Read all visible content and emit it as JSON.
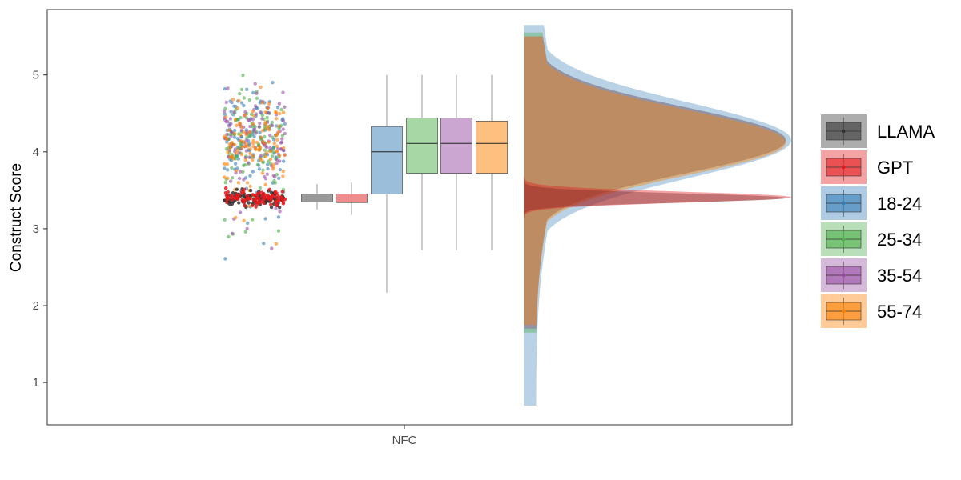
{
  "chart_data": {
    "type": "raincloud",
    "title": "",
    "xlabel": "",
    "ylabel": "Construct Score",
    "categories": [
      "NFC"
    ],
    "ylim": [
      0.45,
      5.85
    ],
    "yticks": [
      1,
      2,
      3,
      4,
      5
    ],
    "grid": false,
    "legend_position": "right",
    "series": [
      {
        "name": "LLAMA",
        "color": "#333333",
        "box": {
          "whisker_low": 3.25,
          "q1": 3.35,
          "median": 3.4,
          "q3": 3.45,
          "whisker_high": 3.58
        },
        "density": {
          "mode": 3.4,
          "sd": 0.06,
          "peak": 0.98,
          "min": 3.1,
          "max": 3.7
        }
      },
      {
        "name": "GPT",
        "color": "#e41a1c",
        "box": {
          "whisker_low": 3.18,
          "q1": 3.34,
          "median": 3.4,
          "q3": 3.45,
          "whisker_high": 3.6
        },
        "density": {
          "mode": 3.41,
          "sd": 0.07,
          "peak": 1.0,
          "min": 3.1,
          "max": 3.75
        }
      },
      {
        "name": "18-24",
        "color": "#377eb8",
        "box": {
          "whisker_low": 2.17,
          "q1": 3.45,
          "median": 4.0,
          "q3": 4.33,
          "whisker_high": 5.0
        },
        "density": {
          "mode": 4.15,
          "sd": 0.48,
          "peak": 1.0,
          "min": 0.7,
          "max": 5.65
        }
      },
      {
        "name": "25-34",
        "color": "#4daf4a",
        "box": {
          "whisker_low": 2.72,
          "q1": 3.72,
          "median": 4.11,
          "q3": 4.44,
          "whisker_high": 5.0
        },
        "density": {
          "mode": 4.15,
          "sd": 0.42,
          "peak": 0.98,
          "min": 1.65,
          "max": 5.55
        }
      },
      {
        "name": "35-54",
        "color": "#984ea3",
        "box": {
          "whisker_low": 2.72,
          "q1": 3.72,
          "median": 4.11,
          "q3": 4.44,
          "whisker_high": 5.0
        },
        "density": {
          "mode": 4.15,
          "sd": 0.42,
          "peak": 0.98,
          "min": 1.7,
          "max": 5.5
        }
      },
      {
        "name": "55-74",
        "color": "#ff7f00",
        "box": {
          "whisker_low": 2.72,
          "q1": 3.72,
          "median": 4.11,
          "q3": 4.4,
          "whisker_high": 5.0
        },
        "density": {
          "mode": 4.12,
          "sd": 0.42,
          "peak": 0.98,
          "min": 1.75,
          "max": 5.5
        }
      }
    ]
  }
}
